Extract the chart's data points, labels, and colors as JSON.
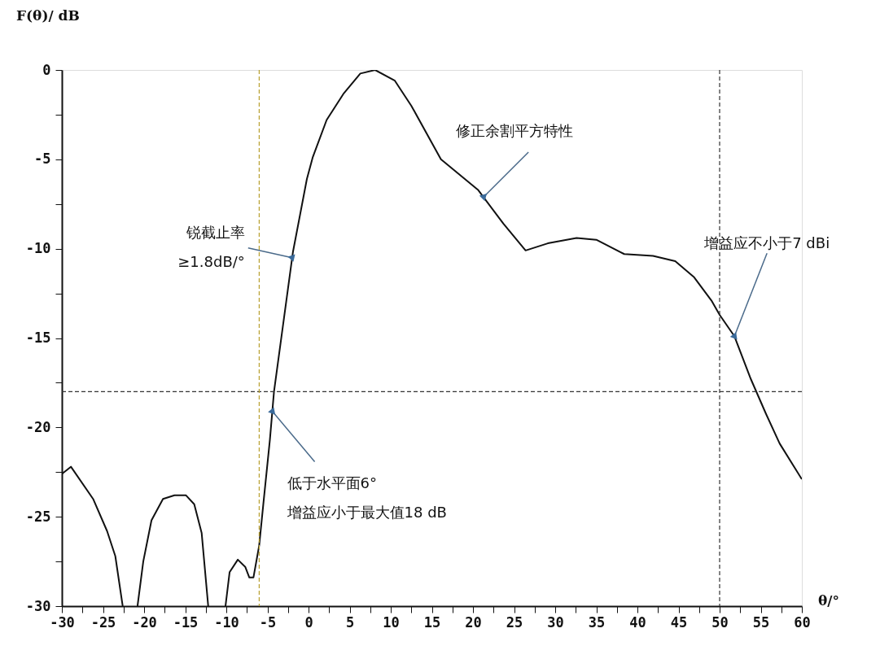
{
  "chart_data": {
    "type": "line",
    "ylabel": "F(θ)/ dB",
    "xlabel": "θ/°",
    "xlim": [
      -30,
      60
    ],
    "xticks": [
      -30,
      {
        "value": -27.5,
        "label": null
      },
      -25,
      {
        "value": -22.5,
        "label": null
      },
      -20,
      {
        "value": -17.5,
        "label": null
      },
      -15,
      {
        "value": -12.5,
        "label": null
      },
      -10,
      {
        "value": -7.5,
        "label": null
      },
      -5,
      {
        "value": -2.5,
        "label": null
      },
      0,
      {
        "value": 2.5,
        "label": null
      },
      5,
      {
        "value": 7.5,
        "label": null
      },
      10,
      {
        "value": 12.5,
        "label": null
      },
      15,
      {
        "value": 17.5,
        "label": null
      },
      20,
      {
        "value": 22.5,
        "label": null
      },
      25,
      {
        "value": 27.5,
        "label": null
      },
      30,
      {
        "value": 32.5,
        "label": null
      },
      35,
      {
        "value": 37.5,
        "label": null
      },
      40,
      {
        "value": 42.5,
        "label": null
      },
      45,
      {
        "value": 47.5,
        "label": null
      },
      50,
      {
        "value": 52.5,
        "label": null
      },
      55,
      {
        "value": 57.5,
        "label": null
      },
      60
    ],
    "ylim": [
      -30,
      0
    ],
    "yticks": [
      -30,
      {
        "value": -27.5,
        "label": null
      },
      -25,
      {
        "value": -22.5,
        "label": null
      },
      -20,
      {
        "value": -17.5,
        "label": null
      },
      -15,
      {
        "value": -12.5,
        "label": null
      },
      -10,
      {
        "value": -7.5,
        "label": null
      },
      -5,
      {
        "value": -2.5,
        "label": null
      },
      0
    ],
    "grid": false,
    "marker": "none",
    "line_style": "solid",
    "series": [
      {
        "color": "#111111",
        "x": [
          -30,
          -28.9,
          -26.2,
          -24.5,
          -23.5,
          -22.6,
          -21.7,
          -20.8,
          -20.1,
          -19.1,
          -17.7,
          -16.3,
          -14.9,
          -13.9,
          -13.0,
          -12.2,
          -11.2,
          -10.1,
          -9.6,
          -8.6,
          -7.7,
          -7.2,
          -6.7,
          -6.0,
          -5.5,
          -4.7,
          -4.2,
          -1.9,
          -0.2,
          0.5,
          2.2,
          4.3,
          6.3,
          8.1,
          10.5,
          12.5,
          16.1,
          20.6,
          23.7,
          26.4,
          29.1,
          32.6,
          35.0,
          38.4,
          41.9,
          44.6,
          46.9,
          49.0,
          50.0,
          51.8,
          53.8,
          55.6,
          57.3,
          60
        ],
        "values": [
          -22.6,
          -22.2,
          -24.0,
          -25.8,
          -27.2,
          -30,
          null,
          -30,
          -27.5,
          -25.2,
          -24.0,
          -23.8,
          -23.8,
          -24.3,
          -25.9,
          -30,
          null,
          -30,
          -28.1,
          -27.4,
          -27.8,
          -28.4,
          -28.4,
          -26.6,
          -24.3,
          -20.7,
          -18.0,
          -10.2,
          -6.1,
          -4.9,
          -2.8,
          -1.3,
          -0.2,
          0,
          -0.6,
          -2.0,
          -5.0,
          -6.7,
          -8.6,
          -10.1,
          -9.7,
          -9.4,
          -9.5,
          -10.3,
          -10.4,
          -10.7,
          -11.6,
          -12.9,
          -13.7,
          -14.9,
          -17.3,
          -19.2,
          -20.9,
          -22.9
        ]
      }
    ],
    "ref_lines": [
      {
        "axis": "y",
        "value": -18,
        "color": "#333333",
        "line_style": "dashed"
      },
      {
        "axis": "x",
        "value": -6,
        "color": "#b8a030",
        "line_style": "dashed"
      },
      {
        "axis": "x",
        "value": 50,
        "color": "#333333",
        "line_style": "dashed"
      }
    ],
    "annotations": [
      {
        "text": "修正余割平方特性",
        "x": 21.3,
        "y": -7.1
      },
      {
        "text": "锐截止率\n≥1.8dB/°",
        "x": -2.0,
        "y": -10.5
      },
      {
        "text": "低于水平面6°\n增益应小于最大值18 dB",
        "x": -4.4,
        "y": -19.1
      },
      {
        "text": "增益应不小于7 dBi",
        "x": 51.8,
        "y": -14.9
      }
    ]
  }
}
